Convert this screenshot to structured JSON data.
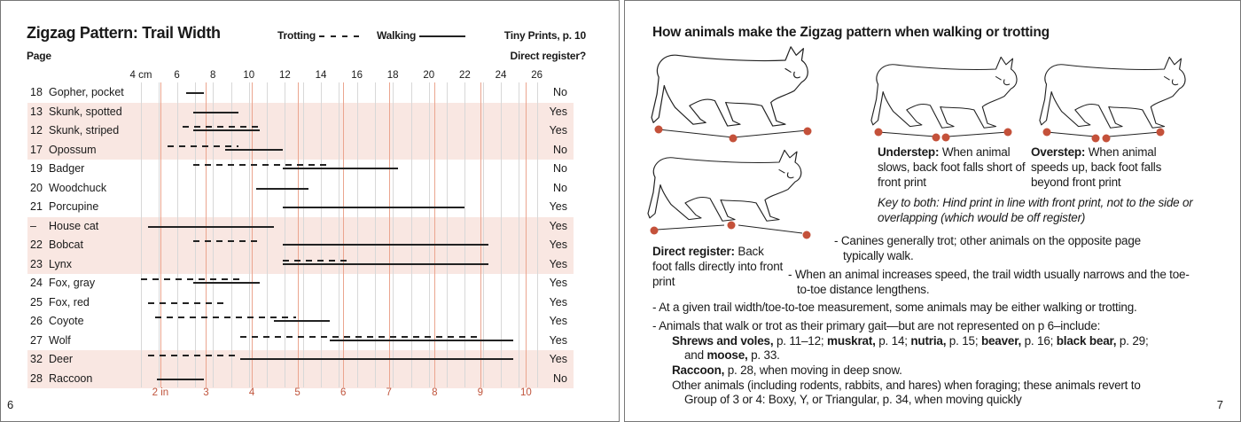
{
  "left_page": {
    "title": "Zigzag Pattern: Trail Width",
    "legend": {
      "trotting": "Trotting",
      "walking": "Walking"
    },
    "source": "Tiny Prints, p. 10",
    "page_col_header": "Page",
    "register_col_header": "Direct register?",
    "page_number": "6",
    "colors": {
      "band": "#f9e7e2",
      "inch_line": "#eba58f",
      "cm_line": "#d8d8d8",
      "bar": "#222222"
    }
  },
  "chart_data": {
    "type": "range-bar",
    "x_unit_top": "cm",
    "x_unit_bottom": "in",
    "xlim_cm": [
      4,
      26
    ],
    "cm_ticks": [
      "4 cm",
      "6",
      "8",
      "10",
      "12",
      "14",
      "16",
      "18",
      "20",
      "22",
      "24",
      "26"
    ],
    "inch_ticks": [
      "2 in",
      "3",
      "4",
      "5",
      "6",
      "7",
      "8",
      "9",
      "10"
    ],
    "rows": [
      {
        "page": "18",
        "animal": "Gopher, pocket",
        "register": "No",
        "walk": [
          6.5,
          7.5
        ],
        "trot": null,
        "shaded": false
      },
      {
        "page": "13",
        "animal": "Skunk, spotted",
        "register": "Yes",
        "walk": [
          6.9,
          9.4
        ],
        "trot": null,
        "shaded": true
      },
      {
        "page": "12",
        "animal": "Skunk, striped",
        "register": "Yes",
        "walk": [
          6.9,
          10.6
        ],
        "trot": [
          6.3,
          10.7
        ],
        "shaded": true
      },
      {
        "page": "17",
        "animal": "Opossum",
        "register": "No",
        "walk": [
          8.7,
          11.9
        ],
        "trot": [
          5.5,
          9.4
        ],
        "shaded": true
      },
      {
        "page": "19",
        "animal": "Badger",
        "register": "No",
        "walk": [
          11.9,
          18.3
        ],
        "trot": [
          6.9,
          14.4
        ],
        "shaded": false
      },
      {
        "page": "20",
        "animal": "Woodchuck",
        "register": "No",
        "walk": [
          10.4,
          13.3
        ],
        "trot": null,
        "shaded": false
      },
      {
        "page": "21",
        "animal": "Porcupine",
        "register": "Yes",
        "walk": [
          11.9,
          22.0
        ],
        "trot": null,
        "shaded": false
      },
      {
        "page": "–",
        "animal": "House cat",
        "register": "Yes",
        "walk": [
          4.4,
          11.4
        ],
        "trot": null,
        "shaded": true
      },
      {
        "page": "22",
        "animal": "Bobcat",
        "register": "Yes",
        "walk": [
          11.9,
          23.3
        ],
        "trot": [
          6.9,
          10.6
        ],
        "shaded": true
      },
      {
        "page": "23",
        "animal": "Lynx",
        "register": "Yes",
        "walk": [
          11.9,
          23.3
        ],
        "trot": [
          11.9,
          15.7
        ],
        "shaded": true
      },
      {
        "page": "24",
        "animal": "Fox, gray",
        "register": "Yes",
        "walk": [
          6.9,
          10.6
        ],
        "trot": [
          4.0,
          9.5
        ],
        "shaded": false
      },
      {
        "page": "25",
        "animal": "Fox, red",
        "register": "Yes",
        "walk": null,
        "trot": [
          4.4,
          8.8
        ],
        "shaded": false
      },
      {
        "page": "26",
        "animal": "Coyote",
        "register": "Yes",
        "walk": [
          11.4,
          14.5
        ],
        "trot": [
          4.8,
          12.6
        ],
        "shaded": false
      },
      {
        "page": "27",
        "animal": "Wolf",
        "register": "Yes",
        "walk": [
          14.5,
          24.7
        ],
        "trot": [
          9.5,
          22.8
        ],
        "shaded": false
      },
      {
        "page": "32",
        "animal": "Deer",
        "register": "Yes",
        "walk": [
          9.5,
          24.7
        ],
        "trot": [
          4.4,
          9.4
        ],
        "shaded": true
      },
      {
        "page": "28",
        "animal": "Raccoon",
        "register": "No",
        "walk": [
          4.9,
          7.5
        ],
        "trot": null,
        "shaded": true
      }
    ]
  },
  "right_page": {
    "title": "How animals make the Zigzag pattern when walking or trotting",
    "understep": {
      "term": "Understep:",
      "text": "When animal slows, back foot falls short of front print"
    },
    "overstep": {
      "term": "Overstep:",
      "text": "When animal speeds up, back foot falls beyond front print"
    },
    "key": "Key to both: Hind print in line with front print, not to the side or overlapping (which would be off register)",
    "direct": {
      "term": "Direct register:",
      "text": "Back foot falls directly into front print"
    },
    "bullets": [
      "- Canines generally trot; other animals on the opposite page typically walk.",
      "- When an animal increases speed, the trail width usually narrows and the toe-to-toe distance lengthens.",
      "- At a given trail width/toe-to-toe measurement, some animals may be either walking or trotting.",
      "- Animals that walk or trot as their primary gait—but are not represented on p 6–include:"
    ],
    "include_list": {
      "shrews": "Shrews and voles,",
      "shrews_p": " p. 11–12; ",
      "muskrat": "muskrat,",
      "muskrat_p": " p. 14; ",
      "nutria": "nutria,",
      "nutria_p": " p. 15; ",
      "beaver": "beaver,",
      "beaver_p": " p. 16; ",
      "bear": "black bear,",
      "bear_p": " p. 29;",
      "and": "and ",
      "moose": "moose,",
      "moose_p": " p. 33.",
      "raccoon": "Raccoon,",
      "raccoon_p": " p. 28, when moving in deep snow.",
      "other1": "Other animals (including rodents, rabbits, and hares) when foraging; these animals revert to",
      "other2": "Group of 3 or 4: Boxy, Y, or Triangular, p. 34, when moving quickly"
    },
    "page_number": "7",
    "colors": {
      "footprint_dot": "#c4513a"
    }
  }
}
